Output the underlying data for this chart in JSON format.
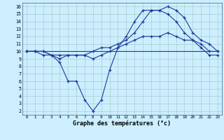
{
  "bg_color": "#cceeff",
  "grid_color": "#aacccc",
  "line_color": "#1a3a9c",
  "xlabel": "Graphe des températures (°c)",
  "xlim": [
    -0.5,
    23.5
  ],
  "ylim": [
    1.5,
    16.5
  ],
  "xticks": [
    0,
    1,
    2,
    3,
    4,
    5,
    6,
    7,
    8,
    9,
    10,
    11,
    12,
    13,
    14,
    15,
    16,
    17,
    18,
    19,
    20,
    21,
    22,
    23
  ],
  "yticks": [
    2,
    3,
    4,
    5,
    6,
    7,
    8,
    9,
    10,
    11,
    12,
    13,
    14,
    15,
    16
  ],
  "series_flat_x": [
    0,
    1,
    2,
    3,
    4,
    5,
    6,
    7,
    8,
    9,
    10,
    11,
    12,
    13,
    14,
    15,
    16,
    17,
    18,
    19,
    20,
    21,
    22,
    23
  ],
  "series_flat_y": [
    10,
    10,
    10,
    10,
    10,
    10,
    10,
    10,
    10,
    10,
    10,
    10,
    10,
    10,
    10,
    10,
    10,
    10,
    10,
    10,
    10,
    10,
    10,
    10
  ],
  "series_upper_x": [
    0,
    1,
    2,
    3,
    4,
    5,
    6,
    7,
    8,
    9,
    10,
    11,
    12,
    13,
    14,
    15,
    16,
    17,
    18,
    19,
    20,
    21,
    22,
    23
  ],
  "series_upper_y": [
    10,
    10,
    10,
    9.5,
    9.5,
    9.5,
    9.5,
    9.5,
    9,
    9.5,
    10,
    10.5,
    11,
    11.5,
    12,
    12,
    12,
    12.5,
    12,
    11.5,
    11.5,
    11,
    10,
    10
  ],
  "series_peak_x": [
    0,
    1,
    2,
    3,
    4,
    5,
    6,
    7,
    8,
    9,
    10,
    11,
    12,
    13,
    14,
    15,
    16,
    17,
    18,
    19,
    20,
    21,
    22,
    23
  ],
  "series_peak_y": [
    10,
    10,
    10,
    9.5,
    9,
    9.5,
    9.5,
    9.5,
    10,
    10.5,
    10.5,
    11,
    11.5,
    12.5,
    14,
    15.5,
    15.5,
    16,
    15.5,
    14.5,
    12.5,
    11.5,
    11,
    10
  ],
  "series_zigzag_x": [
    0,
    1,
    2,
    3,
    4,
    5,
    6,
    7,
    8,
    9,
    10,
    11,
    12,
    13,
    14,
    15,
    16,
    17,
    18,
    19,
    20,
    21,
    22,
    23
  ],
  "series_zigzag_y": [
    10,
    10,
    9.5,
    9.5,
    8.5,
    6,
    6,
    3.5,
    2,
    3.5,
    7.5,
    10.5,
    12,
    14,
    15.5,
    15.5,
    15.5,
    15,
    14,
    12.5,
    11.5,
    10.5,
    9.5,
    9.5
  ]
}
